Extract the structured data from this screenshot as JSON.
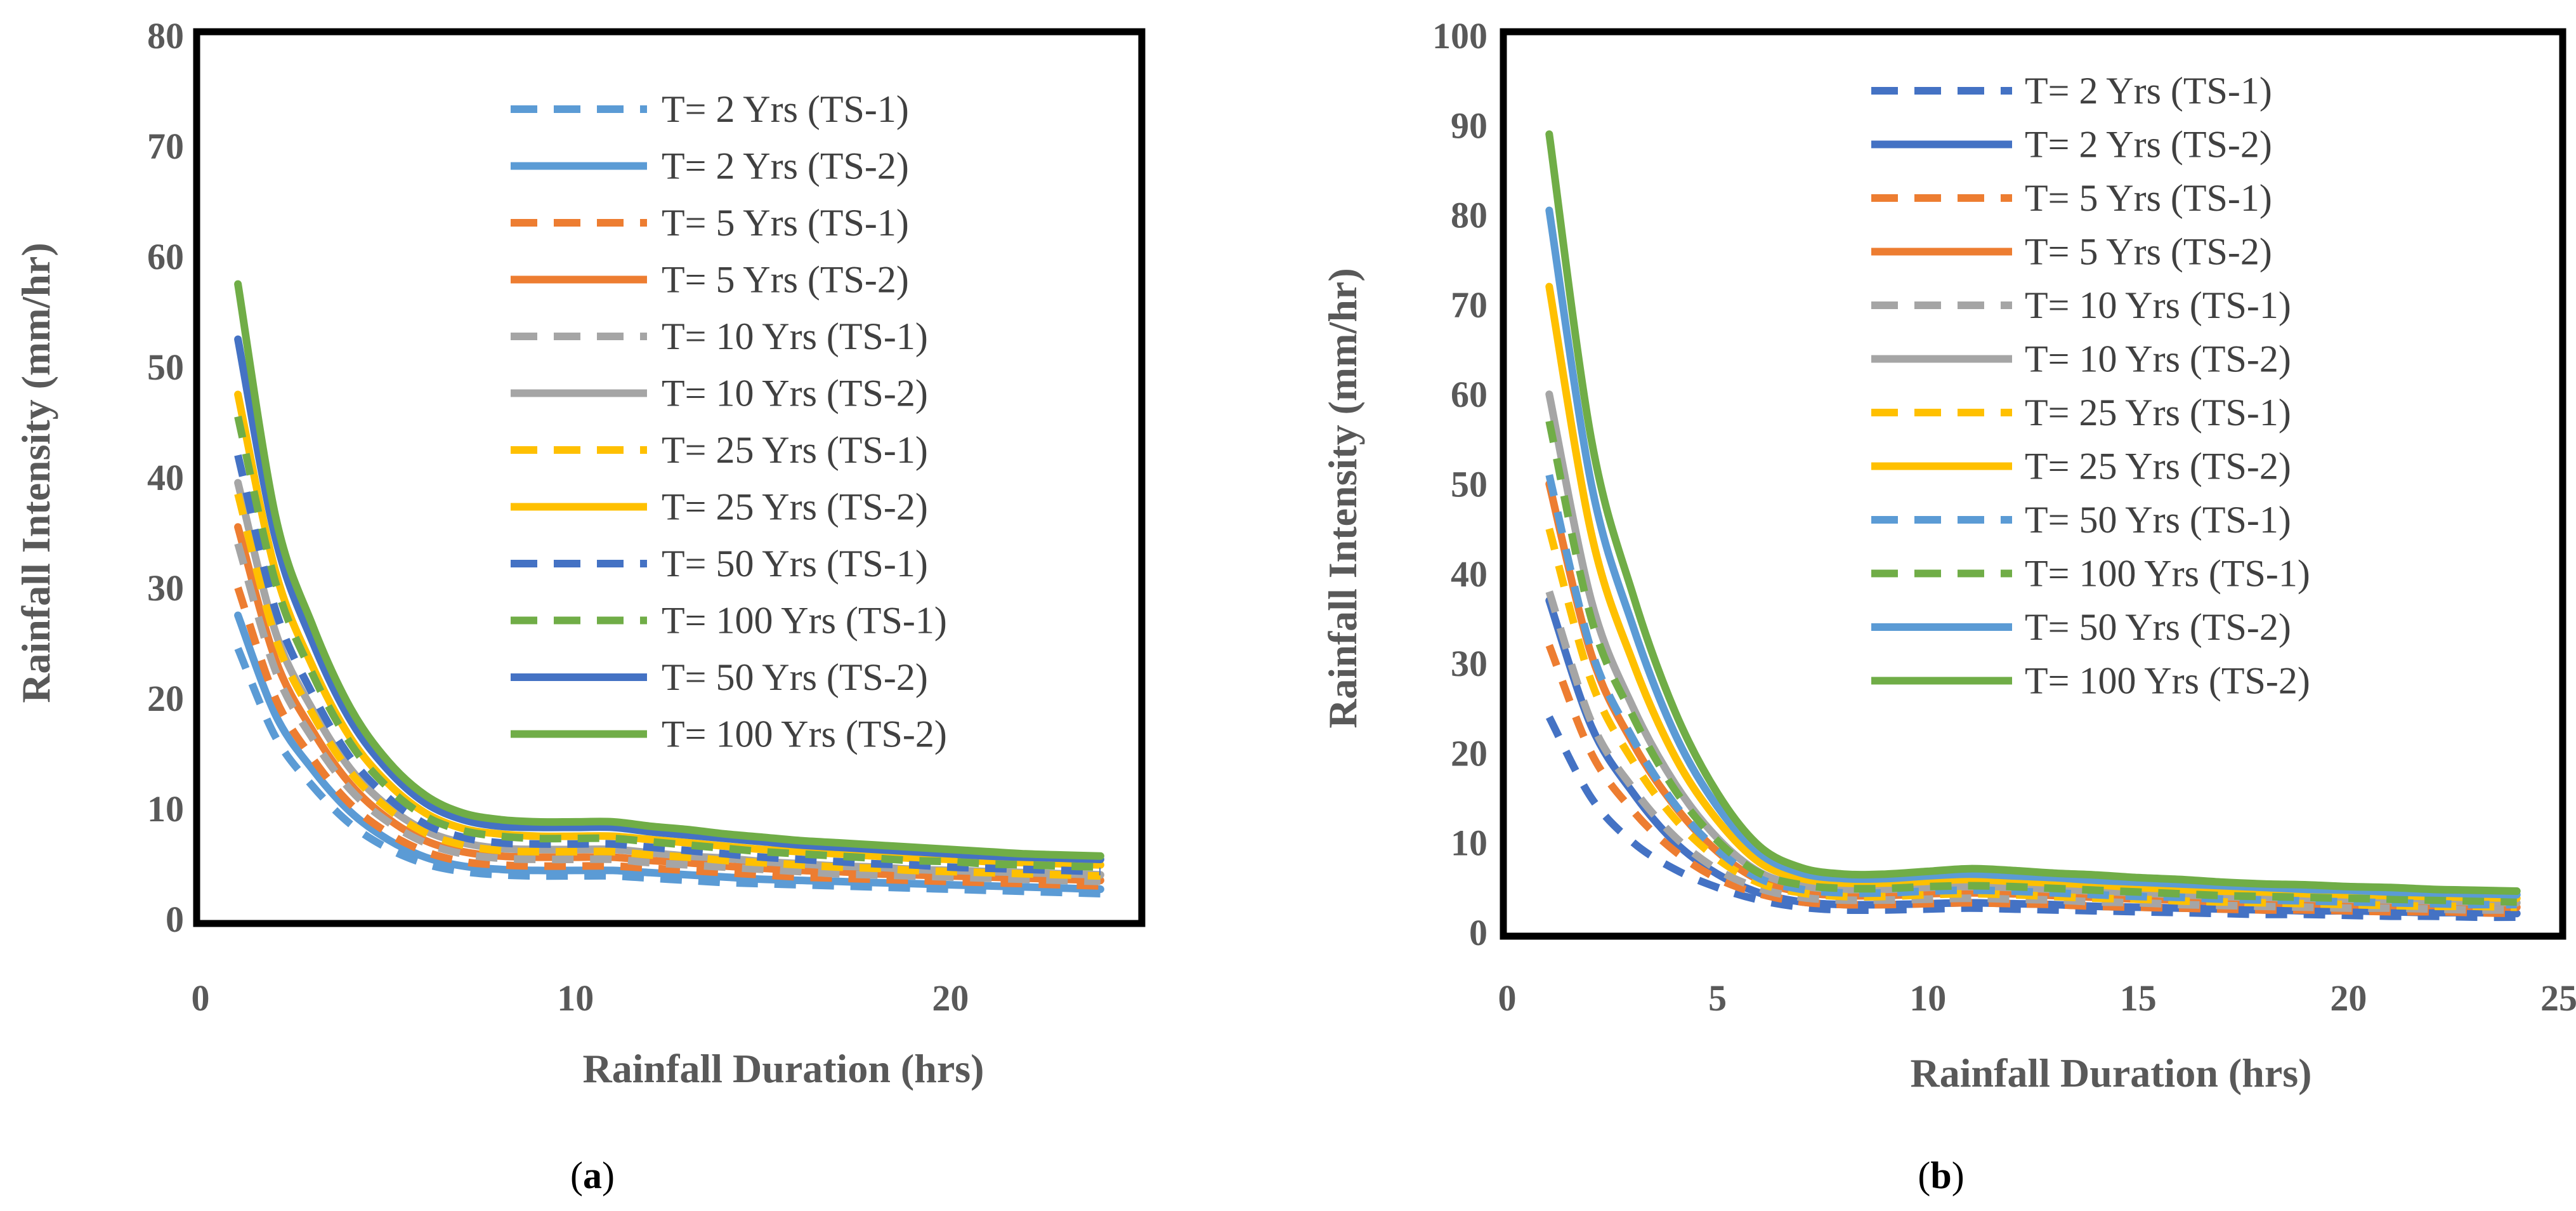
{
  "colors": {
    "blue_light": "#5b9bd5",
    "blue_dark": "#4472c4",
    "orange": "#ed7d31",
    "gray": "#a5a5a5",
    "gold": "#ffc000",
    "green": "#70ad47"
  },
  "chart_data": [
    {
      "type": "line",
      "panel_label": "a",
      "title": "",
      "xlabel": "Rainfall Duration (hrs)",
      "ylabel": "Rainfall Intensity (mm/hr)",
      "xlim": [
        0,
        25
      ],
      "ylim": [
        0,
        80
      ],
      "xticks": [
        0,
        10,
        20
      ],
      "yticks": [
        0,
        10,
        20,
        30,
        40,
        50,
        60,
        70,
        80
      ],
      "x": [
        1,
        2,
        3,
        4,
        5,
        6,
        7,
        8,
        9,
        10,
        11,
        12,
        13,
        14,
        15,
        16,
        17,
        18,
        19,
        20,
        21,
        22,
        23,
        24
      ],
      "legend_position": "top-right",
      "series": [
        {
          "name": "T= 2 Yrs (TS-1)",
          "color": "#5b9bd5",
          "dash": true,
          "values": [
            24.5,
            16.5,
            12.0,
            8.6,
            6.4,
            5.0,
            4.3,
            4.0,
            3.9,
            3.9,
            3.9,
            3.7,
            3.5,
            3.3,
            3.2,
            3.1,
            3.0,
            2.9,
            2.8,
            2.7,
            2.6,
            2.5,
            2.4,
            2.3
          ]
        },
        {
          "name": "T= 2 Yrs (TS-2)",
          "color": "#5b9bd5",
          "dash": false,
          "values": [
            27.5,
            18.5,
            13.5,
            9.7,
            7.2,
            5.6,
            4.8,
            4.5,
            4.4,
            4.4,
            4.4,
            4.2,
            4.0,
            3.8,
            3.6,
            3.5,
            3.4,
            3.3,
            3.2,
            3.1,
            3.0,
            2.9,
            2.8,
            2.7
          ]
        },
        {
          "name": "T= 5 Yrs (TS-1)",
          "color": "#ed7d31",
          "dash": true,
          "values": [
            30.0,
            20.0,
            14.5,
            10.4,
            7.8,
            6.1,
            5.2,
            4.9,
            4.8,
            4.8,
            4.8,
            4.6,
            4.4,
            4.2,
            4.0,
            3.8,
            3.7,
            3.6,
            3.5,
            3.4,
            3.3,
            3.2,
            3.1,
            3.0
          ]
        },
        {
          "name": "T= 5 Yrs (TS-2)",
          "color": "#ed7d31",
          "dash": false,
          "values": [
            35.5,
            23.5,
            17.0,
            12.2,
            9.1,
            7.1,
            6.1,
            5.7,
            5.6,
            5.6,
            5.6,
            5.3,
            5.1,
            4.8,
            4.6,
            4.4,
            4.3,
            4.1,
            4.0,
            3.9,
            3.8,
            3.7,
            3.6,
            3.5
          ]
        },
        {
          "name": "T= 10 Yrs (TS-1)",
          "color": "#a5a5a5",
          "dash": true,
          "values": [
            34.0,
            22.5,
            16.3,
            11.7,
            8.8,
            6.9,
            5.9,
            5.5,
            5.4,
            5.4,
            5.4,
            5.1,
            4.9,
            4.7,
            4.5,
            4.3,
            4.1,
            4.0,
            3.9,
            3.8,
            3.7,
            3.6,
            3.5,
            3.4
          ]
        },
        {
          "name": "T= 10 Yrs (TS-2)",
          "color": "#a5a5a5",
          "dash": false,
          "values": [
            39.5,
            26.0,
            18.9,
            13.6,
            10.2,
            8.0,
            6.9,
            6.4,
            6.3,
            6.3,
            6.3,
            6.0,
            5.7,
            5.5,
            5.2,
            5.0,
            4.8,
            4.7,
            4.5,
            4.4,
            4.3,
            4.2,
            4.1,
            4.0
          ]
        },
        {
          "name": "T= 25 Yrs (TS-1)",
          "color": "#ffc000",
          "dash": true,
          "values": [
            38.5,
            25.5,
            18.5,
            13.3,
            10.0,
            7.8,
            6.7,
            6.2,
            6.1,
            6.1,
            6.1,
            5.8,
            5.6,
            5.3,
            5.1,
            4.9,
            4.7,
            4.6,
            4.4,
            4.3,
            4.2,
            4.1,
            4.0,
            3.9
          ]
        },
        {
          "name": "T= 25 Yrs (TS-2)",
          "color": "#ffc000",
          "dash": false,
          "values": [
            47.5,
            31.5,
            22.8,
            16.4,
            12.3,
            9.6,
            8.2,
            7.7,
            7.5,
            7.5,
            7.5,
            7.2,
            6.9,
            6.6,
            6.3,
            6.1,
            5.9,
            5.7,
            5.5,
            5.4,
            5.2,
            5.1,
            5.0,
            4.9
          ]
        },
        {
          "name": "T= 50 Yrs (TS-1)",
          "color": "#4472c4",
          "dash": true,
          "values": [
            42.0,
            28.0,
            20.3,
            14.6,
            11.0,
            8.6,
            7.4,
            6.9,
            6.8,
            6.8,
            6.8,
            6.5,
            6.2,
            5.9,
            5.6,
            5.4,
            5.2,
            5.0,
            4.9,
            4.7,
            4.6,
            4.5,
            4.4,
            4.3
          ]
        },
        {
          "name": "T= 100 Yrs (TS-1)",
          "color": "#70ad47",
          "dash": true,
          "values": [
            45.5,
            30.5,
            22.1,
            15.9,
            11.9,
            9.3,
            8.0,
            7.5,
            7.3,
            7.3,
            7.3,
            7.0,
            6.7,
            6.4,
            6.1,
            5.9,
            5.7,
            5.5,
            5.3,
            5.2,
            5.0,
            4.9,
            4.8,
            4.7
          ]
        },
        {
          "name": "T= 50 Yrs (TS-2)",
          "color": "#4472c4",
          "dash": false,
          "values": [
            52.5,
            34.5,
            25.0,
            18.0,
            13.5,
            10.5,
            9.0,
            8.4,
            8.3,
            8.3,
            8.3,
            7.9,
            7.6,
            7.3,
            7.0,
            6.7,
            6.5,
            6.3,
            6.1,
            5.9,
            5.7,
            5.6,
            5.5,
            5.4
          ]
        },
        {
          "name": "T= 100 Yrs (TS-2)",
          "color": "#70ad47",
          "dash": false,
          "values": [
            57.5,
            36.5,
            26.5,
            19.1,
            14.3,
            11.2,
            9.6,
            9.0,
            8.8,
            8.8,
            8.8,
            8.4,
            8.1,
            7.7,
            7.4,
            7.1,
            6.9,
            6.7,
            6.5,
            6.3,
            6.1,
            5.9,
            5.8,
            5.7
          ]
        }
      ]
    },
    {
      "type": "line",
      "panel_label": "b",
      "title": "",
      "xlabel": "Rainfall Duration (hrs)",
      "ylabel": "Rainfall Intensity (mm/hr)",
      "xlim": [
        0,
        25
      ],
      "ylim": [
        0,
        100
      ],
      "xticks": [
        0,
        5,
        10,
        15,
        20,
        25
      ],
      "yticks": [
        0,
        10,
        20,
        30,
        40,
        50,
        60,
        70,
        80,
        90,
        100
      ],
      "x": [
        1,
        2,
        3,
        4,
        5,
        6,
        7,
        8,
        9,
        10,
        11,
        12,
        13,
        14,
        15,
        16,
        17,
        18,
        19,
        20,
        21,
        22,
        23,
        24
      ],
      "legend_position": "top-right",
      "series": [
        {
          "name": "T= 2 Yrs (TS-1)",
          "color": "#4472c4",
          "dash": true,
          "values": [
            24.0,
            15.0,
            10.0,
            7.0,
            5.0,
            3.6,
            2.8,
            2.5,
            2.5,
            2.6,
            2.7,
            2.6,
            2.5,
            2.4,
            2.3,
            2.2,
            2.1,
            2.0,
            2.0,
            1.9,
            1.8,
            1.8,
            1.7,
            1.7
          ]
        },
        {
          "name": "T= 2 Yrs (TS-2)",
          "color": "#4472c4",
          "dash": false,
          "values": [
            37.0,
            23.0,
            15.5,
            10.0,
            6.5,
            4.4,
            3.4,
            3.1,
            3.1,
            3.2,
            3.3,
            3.2,
            3.1,
            2.9,
            2.8,
            2.7,
            2.6,
            2.5,
            2.4,
            2.4,
            2.3,
            2.2,
            2.2,
            2.1
          ]
        },
        {
          "name": "T= 5 Yrs (TS-1)",
          "color": "#ed7d31",
          "dash": true,
          "values": [
            32.0,
            20.0,
            13.5,
            9.0,
            6.0,
            4.3,
            3.4,
            3.1,
            3.1,
            3.2,
            3.3,
            3.2,
            3.1,
            2.9,
            2.8,
            2.7,
            2.6,
            2.5,
            2.5,
            2.4,
            2.3,
            2.3,
            2.2,
            2.1
          ]
        },
        {
          "name": "T= 5 Yrs (TS-2)",
          "color": "#ed7d31",
          "dash": false,
          "values": [
            50.0,
            31.0,
            21.0,
            14.0,
            9.0,
            5.8,
            4.5,
            4.1,
            4.1,
            4.3,
            4.4,
            4.3,
            4.1,
            3.9,
            3.7,
            3.6,
            3.4,
            3.3,
            3.2,
            3.1,
            3.0,
            3.0,
            2.9,
            2.8
          ]
        },
        {
          "name": "T= 10 Yrs (TS-1)",
          "color": "#a5a5a5",
          "dash": true,
          "values": [
            38.0,
            23.5,
            16.0,
            10.6,
            7.0,
            4.9,
            3.9,
            3.6,
            3.6,
            3.7,
            3.8,
            3.7,
            3.6,
            3.4,
            3.3,
            3.1,
            3.0,
            2.9,
            2.8,
            2.7,
            2.7,
            2.6,
            2.5,
            2.5
          ]
        },
        {
          "name": "T= 10 Yrs (TS-2)",
          "color": "#a5a5a5",
          "dash": false,
          "values": [
            60.0,
            37.0,
            25.0,
            16.5,
            10.5,
            6.7,
            5.2,
            4.8,
            4.8,
            5.0,
            5.1,
            5.0,
            4.8,
            4.6,
            4.4,
            4.2,
            4.0,
            3.9,
            3.8,
            3.7,
            3.6,
            3.5,
            3.4,
            3.3
          ]
        },
        {
          "name": "T= 25 Yrs (TS-1)",
          "color": "#ffc000",
          "dash": true,
          "values": [
            45.0,
            28.0,
            19.0,
            12.6,
            8.2,
            5.5,
            4.4,
            4.0,
            4.0,
            4.2,
            4.3,
            4.2,
            4.0,
            3.8,
            3.7,
            3.5,
            3.4,
            3.3,
            3.2,
            3.1,
            3.0,
            2.9,
            2.9,
            2.8
          ]
        },
        {
          "name": "T= 25 Yrs (TS-2)",
          "color": "#ffc000",
          "dash": false,
          "values": [
            72.0,
            44.5,
            30.0,
            19.5,
            12.5,
            7.8,
            6.0,
            5.5,
            5.5,
            5.7,
            5.9,
            5.7,
            5.5,
            5.3,
            5.0,
            4.8,
            4.6,
            4.5,
            4.3,
            4.2,
            4.1,
            4.0,
            3.9,
            3.8
          ]
        },
        {
          "name": "T= 50 Yrs (TS-1)",
          "color": "#5b9bd5",
          "dash": true,
          "values": [
            51.0,
            31.5,
            21.5,
            14.2,
            9.2,
            6.0,
            4.8,
            4.4,
            4.4,
            4.6,
            4.7,
            4.6,
            4.4,
            4.2,
            4.0,
            3.9,
            3.7,
            3.6,
            3.5,
            3.4,
            3.3,
            3.2,
            3.1,
            3.1
          ]
        },
        {
          "name": "T= 100 Yrs (TS-1)",
          "color": "#70ad47",
          "dash": true,
          "values": [
            57.0,
            35.0,
            24.0,
            15.8,
            10.2,
            6.6,
            5.3,
            4.9,
            4.9,
            5.1,
            5.2,
            5.1,
            4.9,
            4.7,
            4.5,
            4.3,
            4.1,
            4.0,
            3.9,
            3.8,
            3.7,
            3.6,
            3.5,
            3.4
          ]
        },
        {
          "name": "T= 50 Yrs (TS-2)",
          "color": "#5b9bd5",
          "dash": false,
          "values": [
            80.5,
            50.0,
            34.0,
            22.0,
            14.0,
            8.8,
            6.6,
            6.0,
            6.0,
            6.3,
            6.5,
            6.3,
            6.1,
            5.8,
            5.6,
            5.4,
            5.2,
            5.0,
            4.8,
            4.7,
            4.5,
            4.4,
            4.3,
            4.2
          ]
        },
        {
          "name": "T= 100 Yrs (TS-2)",
          "color": "#70ad47",
          "dash": false,
          "values": [
            89.0,
            55.0,
            37.5,
            24.5,
            15.5,
            9.6,
            7.2,
            6.5,
            6.5,
            6.8,
            7.1,
            6.9,
            6.6,
            6.4,
            6.1,
            5.9,
            5.6,
            5.4,
            5.3,
            5.1,
            5.0,
            4.8,
            4.7,
            4.6
          ]
        }
      ]
    }
  ]
}
